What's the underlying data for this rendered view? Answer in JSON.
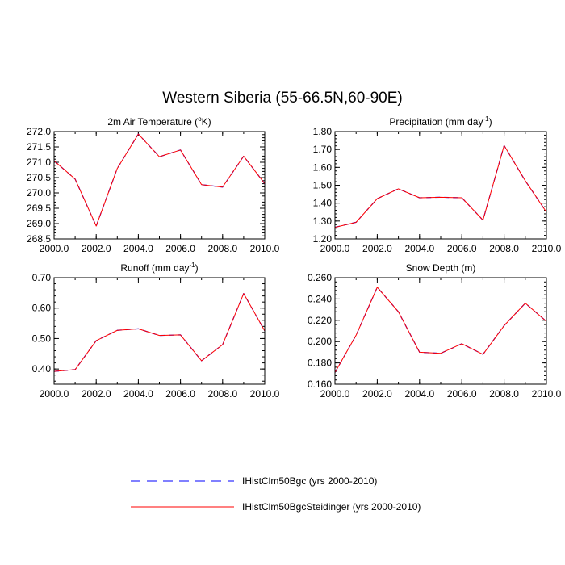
{
  "figure": {
    "title": "Western Siberia (55-66.5N,60-90E)"
  },
  "legend": {
    "items": [
      {
        "label": "IHistClm50Bgc (yrs 2000-2010)",
        "color": "#0000ff",
        "style": "dashed"
      },
      {
        "label": "IHistClm50BgcSteidinger (yrs 2000-2010)",
        "color": "#ff0000",
        "style": "solid"
      }
    ]
  },
  "chart_data": [
    {
      "type": "line",
      "title": "2m Air Temperature (",
      "title_sup": "o",
      "title_after": "K)",
      "x": [
        2000,
        2001,
        2002,
        2003,
        2004,
        2005,
        2006,
        2007,
        2008,
        2009,
        2010
      ],
      "xlim": [
        2000,
        2010
      ],
      "xticks": [
        "2000.0",
        "2002.0",
        "2004.0",
        "2006.0",
        "2008.0",
        "2010.0"
      ],
      "ylim": [
        268.5,
        272.0
      ],
      "yticks": [
        "268.5",
        "269.0",
        "269.5",
        "270.0",
        "270.5",
        "271.0",
        "271.5",
        "272.0"
      ],
      "series": [
        {
          "name": "IHistClm50Bgc (yrs 2000-2010)",
          "values": [
            271.05,
            270.45,
            268.92,
            270.8,
            271.92,
            271.18,
            271.4,
            270.27,
            270.19,
            271.2,
            270.3
          ]
        },
        {
          "name": "IHistClm50BgcSteidinger (yrs 2000-2010)",
          "values": [
            271.05,
            270.45,
            268.92,
            270.8,
            271.92,
            271.18,
            271.4,
            270.27,
            270.19,
            271.2,
            270.3
          ]
        }
      ]
    },
    {
      "type": "line",
      "title": "Precipitation (mm day",
      "title_sup": "-1",
      "title_after": ")",
      "x": [
        2000,
        2001,
        2002,
        2003,
        2004,
        2005,
        2006,
        2007,
        2008,
        2009,
        2010
      ],
      "xlim": [
        2000,
        2010
      ],
      "xticks": [
        "2000.0",
        "2002.0",
        "2004.0",
        "2006.0",
        "2008.0",
        "2010.0"
      ],
      "ylim": [
        1.2,
        1.8
      ],
      "yticks": [
        "1.20",
        "1.30",
        "1.40",
        "1.50",
        "1.60",
        "1.70",
        "1.80"
      ],
      "series": [
        {
          "name": "IHistClm50Bgc (yrs 2000-2010)",
          "values": [
            1.265,
            1.293,
            1.425,
            1.48,
            1.43,
            1.433,
            1.43,
            1.305,
            1.722,
            1.525,
            1.35
          ]
        },
        {
          "name": "IHistClm50BgcSteidinger (yrs 2000-2010)",
          "values": [
            1.265,
            1.293,
            1.425,
            1.48,
            1.43,
            1.433,
            1.43,
            1.305,
            1.722,
            1.525,
            1.35
          ]
        }
      ]
    },
    {
      "type": "line",
      "title": "Runoff (mm day",
      "title_sup": "-1",
      "title_after": ")",
      "x": [
        2000,
        2001,
        2002,
        2003,
        2004,
        2005,
        2006,
        2007,
        2008,
        2009,
        2010
      ],
      "xlim": [
        2000,
        2010
      ],
      "xticks": [
        "2000.0",
        "2002.0",
        "2004.0",
        "2006.0",
        "2008.0",
        "2010.0"
      ],
      "ylim": [
        0.35,
        0.7
      ],
      "yticks": [
        "0.40",
        "0.50",
        "0.60",
        "0.70"
      ],
      "series": [
        {
          "name": "IHistClm50Bgc (yrs 2000-2010)",
          "values": [
            0.392,
            0.398,
            0.493,
            0.527,
            0.532,
            0.51,
            0.512,
            0.427,
            0.48,
            0.648,
            0.525
          ]
        },
        {
          "name": "IHistClm50BgcSteidinger (yrs 2000-2010)",
          "values": [
            0.392,
            0.398,
            0.493,
            0.527,
            0.532,
            0.51,
            0.512,
            0.427,
            0.48,
            0.648,
            0.525
          ]
        }
      ]
    },
    {
      "type": "line",
      "title": "Snow Depth (m)",
      "title_sup": "",
      "title_after": "",
      "x": [
        2000,
        2001,
        2002,
        2003,
        2004,
        2005,
        2006,
        2007,
        2008,
        2009,
        2010
      ],
      "xlim": [
        2000,
        2010
      ],
      "xticks": [
        "2000.0",
        "2002.0",
        "2004.0",
        "2006.0",
        "2008.0",
        "2010.0"
      ],
      "ylim": [
        0.16,
        0.26
      ],
      "yticks": [
        "0.160",
        "0.180",
        "0.200",
        "0.220",
        "0.240",
        "0.260"
      ],
      "series": [
        {
          "name": "IHistClm50Bgc (yrs 2000-2010)",
          "values": [
            0.171,
            0.206,
            0.251,
            0.228,
            0.19,
            0.189,
            0.198,
            0.188,
            0.215,
            0.236,
            0.219
          ]
        },
        {
          "name": "IHistClm50BgcSteidinger (yrs 2000-2010)",
          "values": [
            0.171,
            0.206,
            0.251,
            0.228,
            0.19,
            0.189,
            0.198,
            0.188,
            0.215,
            0.236,
            0.219
          ]
        }
      ]
    }
  ]
}
